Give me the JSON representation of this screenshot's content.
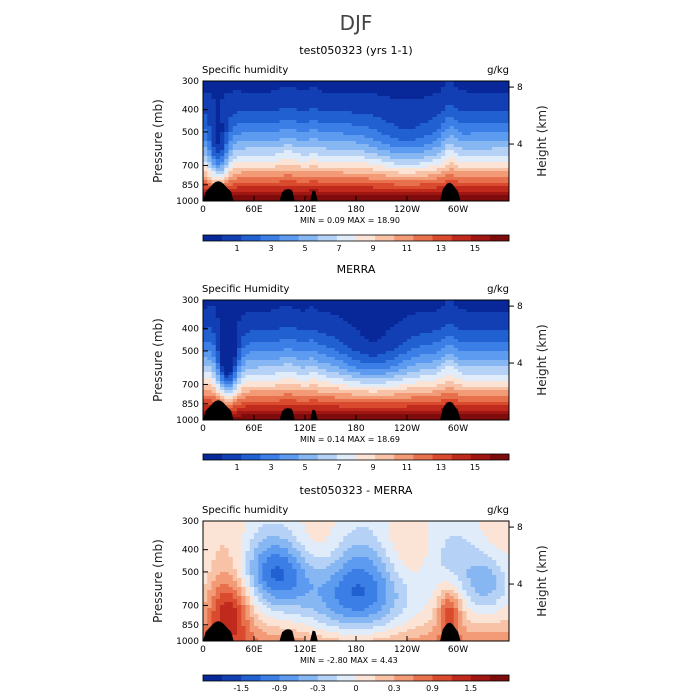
{
  "figure_title": "DJF",
  "chart_data": [
    {
      "type": "heatmap",
      "title": "test050323 (yrs 1-1)",
      "left_label": "Specific humidity",
      "units": "g/kg",
      "ylabel": "Pressure (mb)",
      "ylabel_right": "Height (km)",
      "xlabel": "",
      "xticks": [
        "0",
        "60E",
        "120E",
        "180",
        "120W",
        "60W"
      ],
      "xtick_values": [
        0,
        60,
        120,
        180,
        240,
        300
      ],
      "xlim": [
        0,
        360
      ],
      "yticks": [
        300,
        400,
        500,
        700,
        850,
        1000
      ],
      "ylim": [
        1000,
        300
      ],
      "y_scale": "log",
      "height_ticks": [
        8,
        4
      ],
      "min_label": "MIN =",
      "max_label": "MAX =",
      "min": "0.09",
      "max": "18.90",
      "palette": [
        "#08289a",
        "#123fb3",
        "#2160d0",
        "#3a7ee6",
        "#5c9bef",
        "#86b7f3",
        "#b5d2f6",
        "#e0ecfa",
        "#fbe3d6",
        "#f7c2a6",
        "#f29b76",
        "#e8714d",
        "#d94a2f",
        "#bf2a1c",
        "#a01612",
        "#7f0c0c"
      ],
      "colorbar_labels": [
        "1",
        "3",
        "5",
        "7",
        "9",
        "11",
        "13",
        "15"
      ],
      "field_range": [
        0,
        16
      ]
    },
    {
      "type": "heatmap",
      "title": "MERRA",
      "left_label": "Specific Humidity",
      "units": "g/kg",
      "ylabel": "Pressure (mb)",
      "ylabel_right": "Height (km)",
      "xlabel": "",
      "xticks": [
        "0",
        "60E",
        "120E",
        "180",
        "120W",
        "60W"
      ],
      "xtick_values": [
        0,
        60,
        120,
        180,
        240,
        300
      ],
      "xlim": [
        0,
        360
      ],
      "yticks": [
        300,
        400,
        500,
        700,
        850,
        1000
      ],
      "ylim": [
        1000,
        300
      ],
      "y_scale": "log",
      "height_ticks": [
        8,
        4
      ],
      "min_label": "MIN =",
      "max_label": "MAX =",
      "min": "0.14",
      "max": "18.69",
      "palette": [
        "#08289a",
        "#123fb3",
        "#2160d0",
        "#3a7ee6",
        "#5c9bef",
        "#86b7f3",
        "#b5d2f6",
        "#e0ecfa",
        "#fbe3d6",
        "#f7c2a6",
        "#f29b76",
        "#e8714d",
        "#d94a2f",
        "#bf2a1c",
        "#a01612",
        "#7f0c0c"
      ],
      "colorbar_labels": [
        "1",
        "3",
        "5",
        "7",
        "9",
        "11",
        "13",
        "15"
      ],
      "field_range": [
        0,
        16
      ]
    },
    {
      "type": "heatmap",
      "title": "test050323 - MERRA",
      "left_label": "Specific humidity",
      "units": "g/kg",
      "ylabel": "Pressure (mb)",
      "ylabel_right": "Height (km)",
      "xlabel": "",
      "xticks": [
        "0",
        "60E",
        "120E",
        "180",
        "120W",
        "60W"
      ],
      "xtick_values": [
        0,
        60,
        120,
        180,
        240,
        300
      ],
      "xlim": [
        0,
        360
      ],
      "yticks": [
        300,
        400,
        500,
        700,
        850,
        1000
      ],
      "ylim": [
        1000,
        300
      ],
      "y_scale": "log",
      "height_ticks": [
        8,
        4
      ],
      "min_label": "MIN =",
      "max_label": "MAX =",
      "min": "-2.80",
      "max": "4.43",
      "palette": [
        "#08289a",
        "#123fb3",
        "#2160d0",
        "#3a7ee6",
        "#5c9bef",
        "#86b7f3",
        "#b5d2f6",
        "#e0ecfa",
        "#fbe3d6",
        "#f7c2a6",
        "#f29b76",
        "#e8714d",
        "#d94a2f",
        "#bf2a1c",
        "#a01612",
        "#7f0c0c"
      ],
      "colorbar_labels": [
        "-1.5",
        "-0.9",
        "-0.3",
        "0",
        "0.3",
        "0.9",
        "1.5"
      ],
      "field_range": [
        -2.4,
        2.4
      ]
    }
  ]
}
